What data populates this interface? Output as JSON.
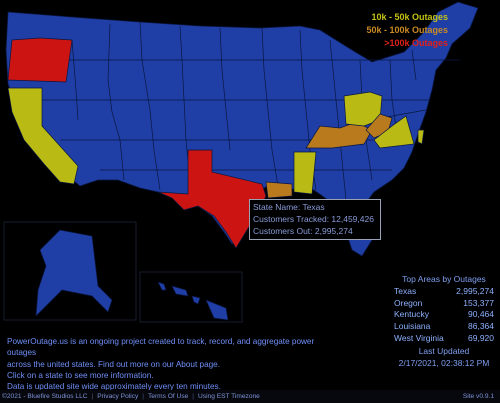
{
  "legend": {
    "items": [
      {
        "label": "10k - 50k Outages",
        "color": "#c3c214"
      },
      {
        "label": "50k - 100k Outages",
        "color": "#c98a24"
      },
      {
        "label": ">100k Outages",
        "color": "#e0201a"
      }
    ]
  },
  "map_colors": {
    "background": "#000000",
    "state_default": "#1f3fa6",
    "state_border": "#0a1640",
    "tier_10k_50k": "#b9bb14",
    "tier_50k_100k": "#b97a1e",
    "tier_100k_plus": "#cc1512"
  },
  "tooltip": {
    "state": "State Name: Texas",
    "tracked": "Customers Tracked: 12,459,426",
    "out": "Customers Out: 2,995,274"
  },
  "top_areas": {
    "header": "Top Areas by Outages",
    "rows": [
      {
        "name": "Texas",
        "value": "2,995,274"
      },
      {
        "name": "Oregon",
        "value": "153,377"
      },
      {
        "name": "Kentucky",
        "value": "90,464"
      },
      {
        "name": "Louisiana",
        "value": "86,364"
      },
      {
        "name": "West Virginia",
        "value": "69,920"
      }
    ],
    "updated_label": "Last Updated",
    "updated_value": "2/17/2021, 02:38:12 PM"
  },
  "info": {
    "line1": "PowerOutage.us is an ongoing project created to track, record, and aggregate power outages",
    "line2": "across the united states. Find out more on our About page.",
    "line3": "Click on a state to see more information.",
    "line4": "Data is updated site wide approximately every ten minutes."
  },
  "footer": {
    "copyright": "©2021 - Bluefire Studios LLC",
    "privacy": "Privacy Policy",
    "terms": "Terms Of Use",
    "timezone": "Using EST Timezone",
    "version": "Site v0.9.1"
  }
}
